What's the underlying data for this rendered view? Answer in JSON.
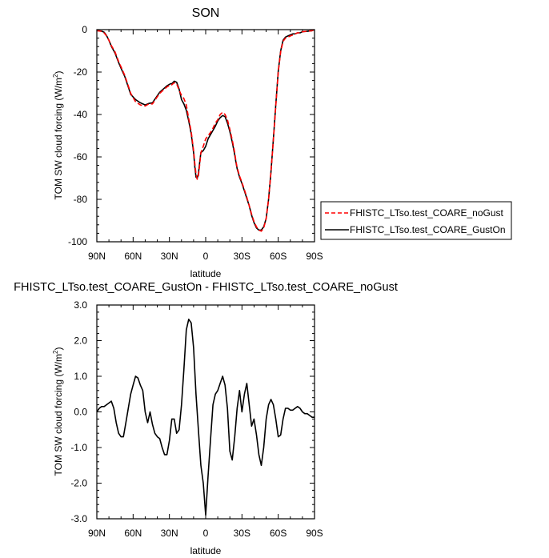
{
  "chart_data": [
    {
      "type": "line",
      "title": "SON",
      "xlabel": "latitude",
      "ylabel": "TOM SW cloud forcing (W/m",
      "ylabel_sup": "2",
      "ylabel_end": ")",
      "xlim": [
        90,
        -90
      ],
      "ylim": [
        -100,
        0
      ],
      "xticks": [
        90,
        60,
        30,
        0,
        -30,
        -60,
        -90
      ],
      "xtick_labels": [
        "90N",
        "60N",
        "30N",
        "0",
        "30S",
        "60S",
        "90S"
      ],
      "yticks": [
        0,
        -20,
        -40,
        -60,
        -80,
        -100
      ],
      "ytick_labels": [
        "0",
        "-20",
        "-40",
        "-60",
        "-80",
        "-100"
      ],
      "grid": false,
      "legend": "right",
      "series": [
        {
          "name": "FHISTC_LTso.test_COARE_noGust",
          "color": "#ff0000",
          "dash": "dashed",
          "x": [
            90,
            86,
            84,
            82,
            80,
            78,
            75,
            72,
            70,
            67,
            64,
            62,
            58,
            54,
            50,
            47,
            44,
            41,
            38,
            35,
            32,
            29,
            28,
            26,
            24,
            22,
            20,
            18,
            16,
            14,
            12,
            10,
            9,
            8,
            7,
            6,
            5,
            4,
            2,
            0,
            -2,
            -4,
            -6,
            -8,
            -10,
            -12,
            -14,
            -16,
            -18,
            -20,
            -22,
            -24,
            -25,
            -26,
            -28,
            -30,
            -32,
            -34,
            -36,
            -38,
            -40,
            -42,
            -44,
            -46,
            -48,
            -50,
            -52,
            -54,
            -56,
            -58,
            -60,
            -62,
            -64,
            -66,
            -68,
            -70,
            -72,
            -74,
            -76,
            -78,
            -80,
            -84,
            -88,
            -90
          ],
          "y": [
            -0.5,
            -0.8,
            -1.5,
            -3.0,
            -5.0,
            -7.5,
            -10.5,
            -15.0,
            -17.5,
            -21.5,
            -26.5,
            -30.0,
            -34.0,
            -35.5,
            -36.0,
            -35.0,
            -35.0,
            -32.5,
            -30.0,
            -28.5,
            -27.0,
            -26.0,
            -26.0,
            -25.0,
            -25.5,
            -28.5,
            -31.0,
            -32.5,
            -35.5,
            -42.0,
            -48.0,
            -57.0,
            -63.0,
            -68.0,
            -70.5,
            -69.0,
            -64.0,
            -58.0,
            -55.0,
            -51.5,
            -50.0,
            -48.5,
            -46.5,
            -44.0,
            -42.5,
            -40.0,
            -39.0,
            -40.0,
            -42.5,
            -47.0,
            -52.0,
            -58.0,
            -62.0,
            -65.0,
            -69.0,
            -72.0,
            -75.5,
            -79.0,
            -83.0,
            -87.0,
            -90.5,
            -93.0,
            -94.5,
            -95.0,
            -93.5,
            -89.0,
            -80.0,
            -67.0,
            -52.0,
            -36.0,
            -20.0,
            -10.5,
            -5.5,
            -4.0,
            -3.5,
            -3.0,
            -2.5,
            -2.0,
            -1.5,
            -1.5,
            -1.0,
            -0.8,
            -0.5,
            0.0
          ]
        },
        {
          "name": "FHISTC_LTso.test_COARE_GustOn",
          "color": "#000000",
          "dash": "solid",
          "x": [
            90,
            86,
            84,
            82,
            80,
            78,
            75,
            72,
            70,
            67,
            64,
            62,
            58,
            54,
            50,
            47,
            44,
            41,
            38,
            35,
            32,
            29,
            28,
            26,
            24,
            22,
            20,
            18,
            16,
            14,
            12,
            10,
            9,
            8,
            7,
            6,
            5,
            4,
            2,
            0,
            -2,
            -4,
            -6,
            -8,
            -10,
            -12,
            -14,
            -16,
            -18,
            -20,
            -22,
            -24,
            -25,
            -26,
            -28,
            -30,
            -32,
            -34,
            -36,
            -38,
            -40,
            -42,
            -44,
            -46,
            -48,
            -50,
            -52,
            -54,
            -56,
            -58,
            -60,
            -62,
            -64,
            -66,
            -68,
            -70,
            -72,
            -74,
            -76,
            -78,
            -80,
            -84,
            -88,
            -90
          ],
          "y": [
            -0.4,
            -0.7,
            -1.2,
            -2.8,
            -5.0,
            -7.8,
            -11.0,
            -15.5,
            -18.2,
            -22.0,
            -27.0,
            -30.5,
            -33.0,
            -34.5,
            -35.5,
            -34.8,
            -34.5,
            -32.0,
            -29.5,
            -28.0,
            -26.5,
            -25.5,
            -25.5,
            -24.3,
            -24.8,
            -28.0,
            -33.0,
            -35.0,
            -38.0,
            -43.0,
            -49.0,
            -58.0,
            -64.5,
            -69.5,
            -70.0,
            -68.0,
            -63.0,
            -58.0,
            -57.0,
            -55.0,
            -51.5,
            -49.5,
            -47.5,
            -45.5,
            -43.0,
            -41.5,
            -40.5,
            -41.0,
            -44.0,
            -48.0,
            -53.0,
            -59.0,
            -62.5,
            -65.5,
            -69.5,
            -72.5,
            -76.0,
            -79.5,
            -83.0,
            -87.5,
            -91.0,
            -93.5,
            -94.5,
            -94.5,
            -93.0,
            -89.0,
            -80.0,
            -67.0,
            -51.5,
            -35.5,
            -19.5,
            -10.0,
            -5.0,
            -3.5,
            -3.0,
            -2.5,
            -2.0,
            -2.0,
            -1.5,
            -1.5,
            -1.0,
            -0.8,
            -0.5,
            0.0
          ]
        }
      ]
    },
    {
      "type": "line",
      "title": "FHISTC_LTso.test_COARE_GustOn - FHISTC_LTso.test_COARE_noGust",
      "xlabel": "latitude",
      "ylabel": "TOM SW cloud forcing (W/m",
      "ylabel_sup": "2",
      "ylabel_end": ")",
      "xlim": [
        90,
        -90
      ],
      "ylim": [
        -3.0,
        3.0
      ],
      "xticks": [
        90,
        60,
        30,
        0,
        -30,
        -60,
        -90
      ],
      "xtick_labels": [
        "90N",
        "60N",
        "30N",
        "0",
        "30S",
        "60S",
        "90S"
      ],
      "yticks": [
        3.0,
        2.0,
        1.0,
        0.0,
        -1.0,
        -2.0,
        -3.0
      ],
      "ytick_labels": [
        "3.0",
        "2.0",
        "1.0",
        "0.0",
        "-1.0",
        "-2.0",
        "-3.0"
      ],
      "grid": false,
      "series": [
        {
          "color": "#000000",
          "dash": "solid",
          "x": [
            90,
            88,
            86,
            84,
            82,
            80,
            78,
            76,
            74,
            72,
            70,
            68,
            66,
            64,
            62,
            60,
            58,
            56,
            54,
            52,
            50,
            48,
            46,
            44,
            42,
            40,
            38,
            36,
            34,
            32,
            30,
            28,
            26,
            24,
            22,
            20,
            18,
            16,
            14,
            12,
            10,
            8,
            6,
            4,
            2,
            0,
            -2,
            -4,
            -6,
            -8,
            -10,
            -12,
            -14,
            -16,
            -18,
            -20,
            -22,
            -24,
            -26,
            -28,
            -30,
            -32,
            -34,
            -36,
            -38,
            -40,
            -42,
            -44,
            -46,
            -48,
            -50,
            -52,
            -54,
            -56,
            -58,
            -60,
            -62,
            -64,
            -66,
            -68,
            -70,
            -72,
            -74,
            -76,
            -78,
            -80,
            -82,
            -84,
            -86,
            -88,
            -90
          ],
          "y": [
            0.0,
            0.1,
            0.15,
            0.15,
            0.2,
            0.25,
            0.3,
            0.1,
            -0.3,
            -0.6,
            -0.7,
            -0.7,
            -0.3,
            0.1,
            0.5,
            0.75,
            1.0,
            0.95,
            0.75,
            0.6,
            0.0,
            -0.3,
            0.0,
            -0.35,
            -0.6,
            -0.7,
            -0.75,
            -1.0,
            -1.2,
            -1.2,
            -0.8,
            -0.2,
            -0.2,
            -0.6,
            -0.5,
            0.2,
            1.2,
            2.3,
            2.6,
            2.5,
            1.8,
            0.5,
            -0.5,
            -1.5,
            -2.0,
            -2.9,
            -1.8,
            -0.8,
            0.2,
            0.5,
            0.6,
            0.8,
            1.0,
            0.75,
            0.1,
            -1.1,
            -1.35,
            -0.7,
            0.1,
            0.6,
            0.0,
            0.5,
            0.8,
            0.2,
            -0.4,
            -0.2,
            -0.65,
            -1.2,
            -1.5,
            -1.0,
            -0.2,
            0.2,
            0.35,
            0.2,
            -0.2,
            -0.7,
            -0.65,
            -0.2,
            0.1,
            0.1,
            0.05,
            0.05,
            0.1,
            0.15,
            0.1,
            0.0,
            -0.05,
            -0.05,
            -0.1,
            -0.15,
            -0.15
          ]
        }
      ]
    }
  ]
}
